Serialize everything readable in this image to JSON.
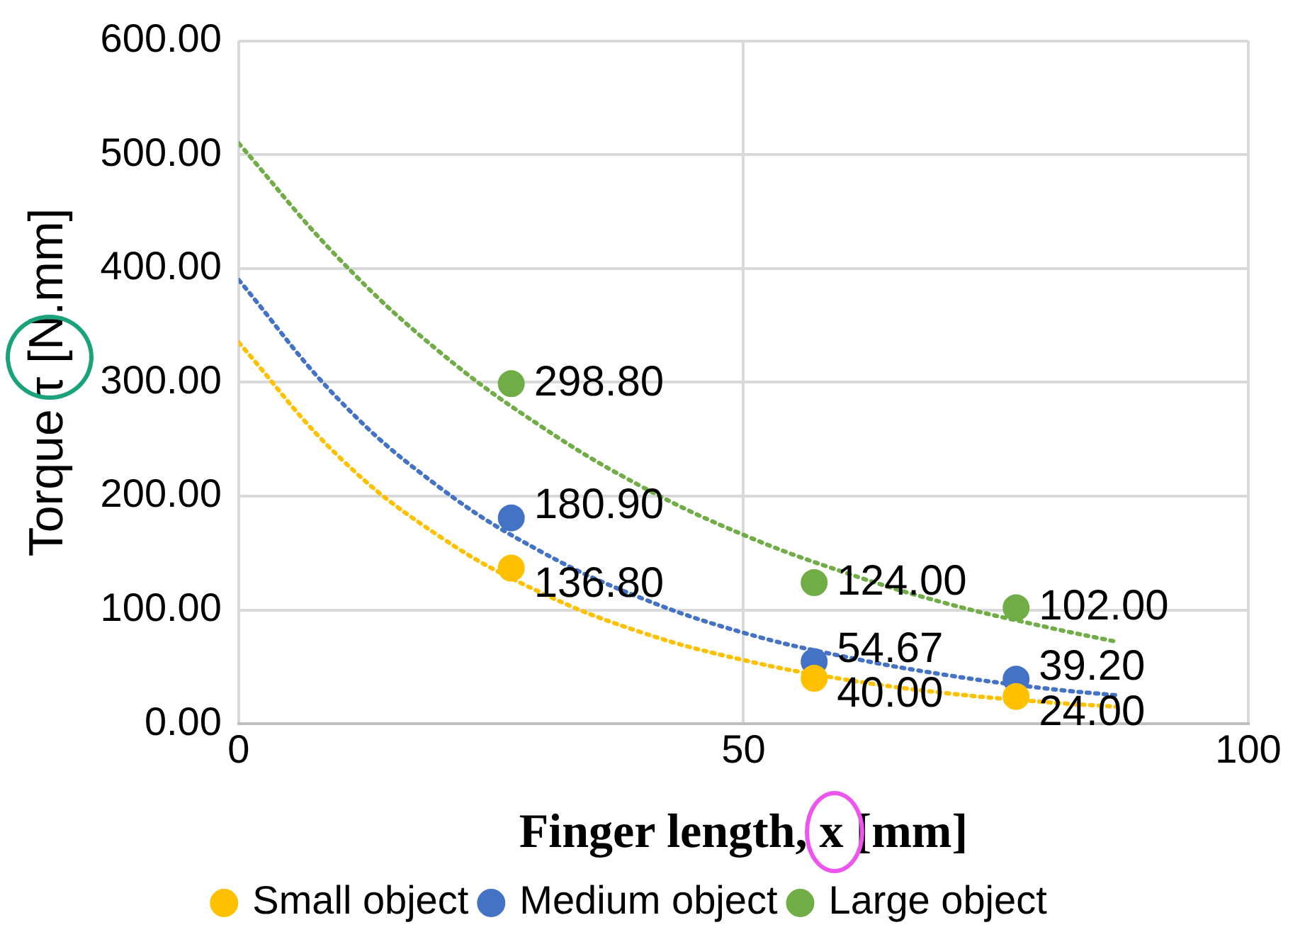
{
  "chart_data": {
    "type": "scatter",
    "xlabel": "Finger length, x [mm]",
    "ylabel": "Torque τ [N.mm]",
    "xlim": [
      0,
      100
    ],
    "xticks": [
      0,
      50,
      100
    ],
    "ylim": [
      0,
      600
    ],
    "yticks": [
      {
        "value": 0,
        "label": "0.00"
      },
      {
        "value": 100,
        "label": "100.00"
      },
      {
        "value": 200,
        "label": "200.00"
      },
      {
        "value": 300,
        "label": "300.00"
      },
      {
        "value": 400,
        "label": "400.00"
      },
      {
        "value": 500,
        "label": "500.00"
      },
      {
        "value": 600,
        "label": "600.00"
      }
    ],
    "grid": true,
    "legend": "bottom",
    "marker": "circle",
    "series": [
      {
        "name": "Small object",
        "color": "#ffc000",
        "x": [
          27,
          57,
          77
        ],
        "values": [
          136.8,
          40,
          24
        ],
        "value_labels": [
          "136.80",
          "40.00",
          "24.00"
        ]
      },
      {
        "name": "Medium object",
        "color": "#4472c4",
        "x": [
          27,
          57,
          77
        ],
        "values": [
          180.9,
          54.67,
          39.2
        ],
        "value_labels": [
          "180.90",
          "54.67",
          "39.20"
        ]
      },
      {
        "name": "Large object",
        "color": "#70ad47",
        "x": [
          27,
          57,
          77
        ],
        "values": [
          298.8,
          124,
          102
        ],
        "value_labels": [
          "298.80",
          "124.00",
          "102.00"
        ]
      },
      {
        "type": "line",
        "color": "#ffc000",
        "line_style": "dotted",
        "marker": "none",
        "x": [
          0,
          10,
          20,
          30,
          40,
          50,
          60,
          70,
          80,
          87
        ],
        "values": [
          335,
          234,
          164,
          115,
          80,
          56,
          39,
          27,
          19,
          15
        ]
      },
      {
        "type": "line",
        "color": "#4472c4",
        "line_style": "dotted",
        "marker": "none",
        "x": [
          0,
          10,
          20,
          30,
          40,
          50,
          60,
          70,
          80,
          87
        ],
        "values": [
          390,
          284,
          207,
          151,
          110,
          80,
          59,
          43,
          31,
          25
        ]
      },
      {
        "type": "line",
        "color": "#70ad47",
        "line_style": "dotted",
        "marker": "none",
        "x": [
          0,
          10,
          20,
          30,
          40,
          50,
          60,
          70,
          80,
          87
        ],
        "values": [
          510,
          408,
          326,
          261,
          208,
          166,
          133,
          106,
          85,
          72
        ]
      }
    ]
  }
}
